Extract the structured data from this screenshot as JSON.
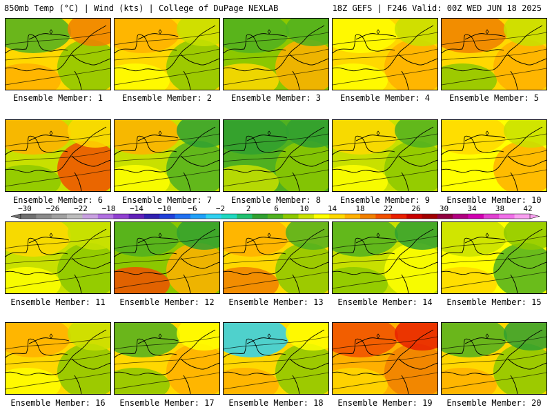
{
  "header": {
    "left": "850mb Temp (°C) | Wind (kts) | College of DuPage NEXLAB",
    "right": "18Z GEFS | F246 Valid: 00Z WED JUN 18 2025"
  },
  "colorbar": {
    "ticks": [
      "−30",
      "−26",
      "−22",
      "−18",
      "−14",
      "−10",
      "−6",
      "−2",
      "2",
      "6",
      "10",
      "14",
      "18",
      "22",
      "26",
      "30",
      "34",
      "38",
      "42"
    ],
    "colors": [
      "#707070",
      "#8a8a8a",
      "#a0a0a0",
      "#bcbcbc",
      "#c8a0e0",
      "#b070e0",
      "#9040d0",
      "#6020b8",
      "#3020b0",
      "#2040d8",
      "#2070f0",
      "#20a0f8",
      "#30d0f0",
      "#20d8c0",
      "#20c070",
      "#30a030",
      "#50b020",
      "#8cc800",
      "#c8e000",
      "#ffff00",
      "#ffd800",
      "#ffb000",
      "#f08000",
      "#f05000",
      "#e82000",
      "#c80000",
      "#a00000",
      "#900040",
      "#b00080",
      "#d000b0",
      "#e040d0",
      "#f070e8",
      "#f8a0f0"
    ]
  },
  "panels": [
    {
      "label": "Ensemble Member: 1",
      "base": "#ffd800",
      "blobs": [
        {
          "c": "#50b020"
        },
        {
          "c": "#8cc800"
        },
        {
          "c": "#ffb000"
        },
        {
          "c": "#f08000"
        }
      ]
    },
    {
      "label": "Ensemble Member: 2",
      "base": "#ffd800",
      "blobs": [
        {
          "c": "#ffb000"
        },
        {
          "c": "#8cc800"
        },
        {
          "c": "#ffff00"
        },
        {
          "c": "#c8e000"
        }
      ]
    },
    {
      "label": "Ensemble Member: 3",
      "base": "#8cc800",
      "blobs": [
        {
          "c": "#50b020"
        },
        {
          "c": "#ffb000"
        },
        {
          "c": "#ffd800"
        },
        {
          "c": "#50b020"
        }
      ]
    },
    {
      "label": "Ensemble Member: 4",
      "base": "#ffd800",
      "blobs": [
        {
          "c": "#ffff00"
        },
        {
          "c": "#ffb000"
        },
        {
          "c": "#ffff00"
        },
        {
          "c": "#c8e000"
        }
      ]
    },
    {
      "label": "Ensemble Member: 5",
      "base": "#ffd800",
      "blobs": [
        {
          "c": "#f08000"
        },
        {
          "c": "#ffb000"
        },
        {
          "c": "#8cc800"
        },
        {
          "c": "#c8e000"
        }
      ]
    },
    {
      "label": "Ensemble Member: 6",
      "base": "#c8e000",
      "blobs": [
        {
          "c": "#ffb000"
        },
        {
          "c": "#f05000"
        },
        {
          "c": "#8cc800"
        },
        {
          "c": "#ffd800"
        }
      ]
    },
    {
      "label": "Ensemble Member: 7",
      "base": "#c8e000",
      "blobs": [
        {
          "c": "#ffb000"
        },
        {
          "c": "#50b020"
        },
        {
          "c": "#ffff00"
        },
        {
          "c": "#30a030"
        }
      ]
    },
    {
      "label": "Ensemble Member: 8",
      "base": "#50b020",
      "blobs": [
        {
          "c": "#30a030"
        },
        {
          "c": "#8cc800"
        },
        {
          "c": "#c8e000"
        },
        {
          "c": "#30a030"
        }
      ]
    },
    {
      "label": "Ensemble Member: 9",
      "base": "#c8e000",
      "blobs": [
        {
          "c": "#ffd800"
        },
        {
          "c": "#8cc800"
        },
        {
          "c": "#ffff00"
        },
        {
          "c": "#50b020"
        }
      ]
    },
    {
      "label": "Ensemble Member: 10",
      "base": "#ffff00",
      "blobs": [
        {
          "c": "#ffd800"
        },
        {
          "c": "#ffb000"
        },
        {
          "c": "#ffff00"
        },
        {
          "c": "#c8e000"
        }
      ]
    },
    {
      "label": "Ensemble Member: 11",
      "base": "#c8e000",
      "blobs": [
        {
          "c": "#ffd800"
        },
        {
          "c": "#8cc800"
        },
        {
          "c": "#ffff00"
        },
        {
          "c": "#c8e000"
        }
      ]
    },
    {
      "label": "Ensemble Member: 12",
      "base": "#8cc800",
      "blobs": [
        {
          "c": "#50b020"
        },
        {
          "c": "#ffb000"
        },
        {
          "c": "#f05000"
        },
        {
          "c": "#30a030"
        }
      ]
    },
    {
      "label": "Ensemble Member: 13",
      "base": "#ffd800",
      "blobs": [
        {
          "c": "#ffb000"
        },
        {
          "c": "#8cc800"
        },
        {
          "c": "#f08000"
        },
        {
          "c": "#50b020"
        }
      ]
    },
    {
      "label": "Ensemble Member: 14",
      "base": "#c8e000",
      "blobs": [
        {
          "c": "#50b020"
        },
        {
          "c": "#ffff00"
        },
        {
          "c": "#8cc800"
        },
        {
          "c": "#30a030"
        }
      ]
    },
    {
      "label": "Ensemble Member: 15",
      "base": "#ffff00",
      "blobs": [
        {
          "c": "#c8e000"
        },
        {
          "c": "#50b020"
        },
        {
          "c": "#ffd800"
        },
        {
          "c": "#8cc800"
        }
      ]
    },
    {
      "label": "Ensemble Member: 16",
      "base": "#ffd800",
      "blobs": [
        {
          "c": "#ffb000"
        },
        {
          "c": "#8cc800"
        },
        {
          "c": "#ffff00"
        },
        {
          "c": "#c8e000"
        }
      ]
    },
    {
      "label": "Ensemble Member: 17",
      "base": "#ffd800",
      "blobs": [
        {
          "c": "#50b020"
        },
        {
          "c": "#ffb000"
        },
        {
          "c": "#8cc800"
        },
        {
          "c": "#ffff00"
        }
      ]
    },
    {
      "label": "Ensemble Member: 18",
      "base": "#ffd800",
      "blobs": [
        {
          "c": "#30d0f0"
        },
        {
          "c": "#8cc800"
        },
        {
          "c": "#ffb000"
        },
        {
          "c": "#ffff00"
        }
      ]
    },
    {
      "label": "Ensemble Member: 19",
      "base": "#ffb000",
      "blobs": [
        {
          "c": "#f05000"
        },
        {
          "c": "#f08000"
        },
        {
          "c": "#ffd800"
        },
        {
          "c": "#e82000"
        }
      ]
    },
    {
      "label": "Ensemble Member: 20",
      "base": "#ffd800",
      "blobs": [
        {
          "c": "#50b020"
        },
        {
          "c": "#8cc800"
        },
        {
          "c": "#ffb000"
        },
        {
          "c": "#30a030"
        }
      ]
    }
  ]
}
